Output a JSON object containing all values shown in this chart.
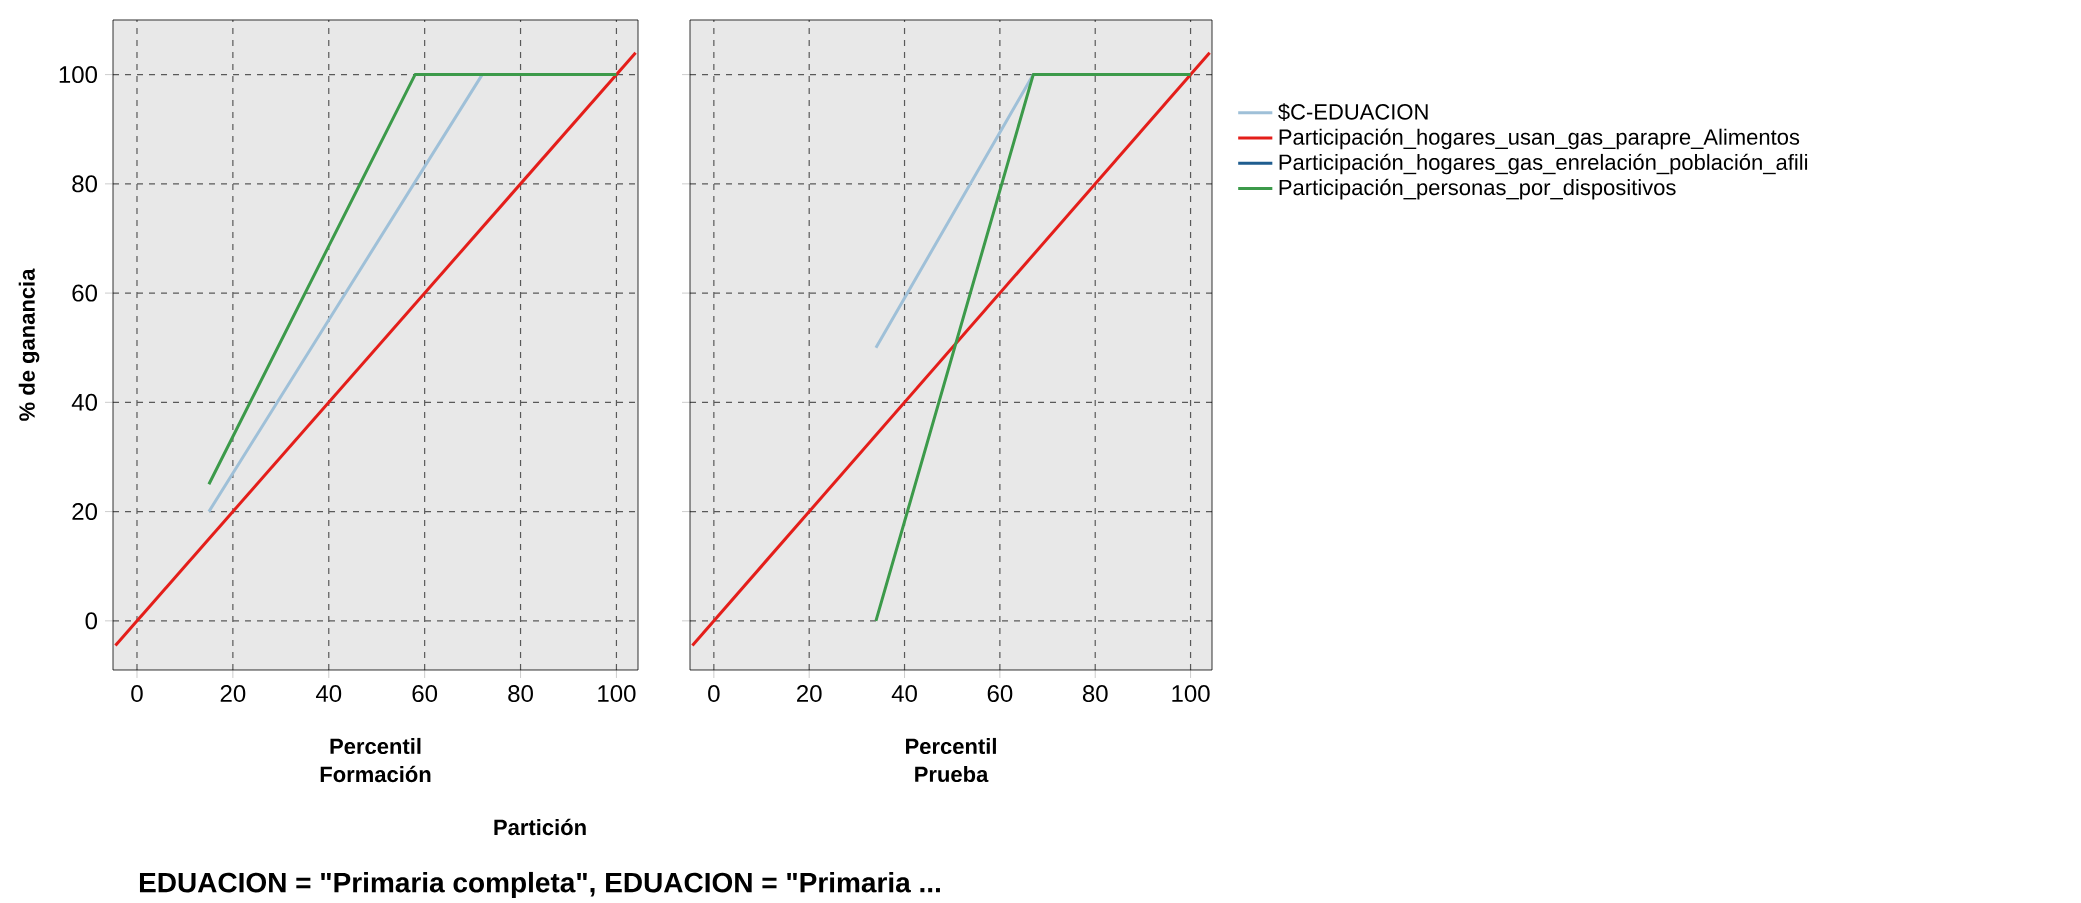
{
  "chart_data": [
    {
      "type": "line",
      "title": "Formación",
      "xlabel": "Percentil",
      "ylabel": "% de ganancia",
      "xlim": [
        -5,
        104.5
      ],
      "ylim": [
        -9,
        110
      ],
      "xticks": [
        0,
        20,
        40,
        60,
        80,
        100
      ],
      "yticks": [
        0,
        20,
        40,
        60,
        80,
        100
      ],
      "grid": true,
      "marker": "none",
      "annotations": [
        "Partición",
        "EDUACION = \"Primaria completa\", EDUACION = \"Primaria ..."
      ],
      "series": [
        {
          "color": "#9fc0d8",
          "x": [
            15,
            72,
            100
          ],
          "values": [
            20,
            100,
            100
          ]
        },
        {
          "color": "#e41e1a",
          "x": [
            -4.5,
            104
          ],
          "values": [
            -4.5,
            104
          ]
        },
        {
          "color": "#1f5d8f"
        },
        {
          "color": "#3c9a4a",
          "x": [
            15,
            58,
            100
          ],
          "values": [
            25,
            100,
            100
          ]
        }
      ]
    },
    {
      "type": "line",
      "title": "Prueba",
      "xlabel": "Percentil",
      "xlim": [
        -5,
        104.5
      ],
      "ylim": [
        -9,
        110
      ],
      "xticks": [
        0,
        20,
        40,
        60,
        80,
        100
      ],
      "yticks": [
        0,
        20,
        40,
        60,
        80,
        100
      ],
      "grid": true,
      "marker": "none",
      "tick_labels": "x",
      "legend": "right",
      "series": [
        {
          "name": "$C-EDUACION",
          "color": "#9fc0d8",
          "x": [
            34,
            67,
            100
          ],
          "values": [
            50,
            100,
            100
          ]
        },
        {
          "name": "Participación_hogares_usan_gas_parapre_Alimentos",
          "color": "#e41e1a",
          "x": [
            -4.5,
            104
          ],
          "values": [
            -4.5,
            104
          ]
        },
        {
          "name": "Participación_hogares_gas_enrelación_población_afili",
          "color": "#1f5d8f"
        },
        {
          "name": "Participación_personas_por_dispositivos",
          "color": "#3c9a4a",
          "x": [
            34,
            67,
            100
          ],
          "values": [
            0,
            100,
            100
          ]
        }
      ]
    }
  ]
}
